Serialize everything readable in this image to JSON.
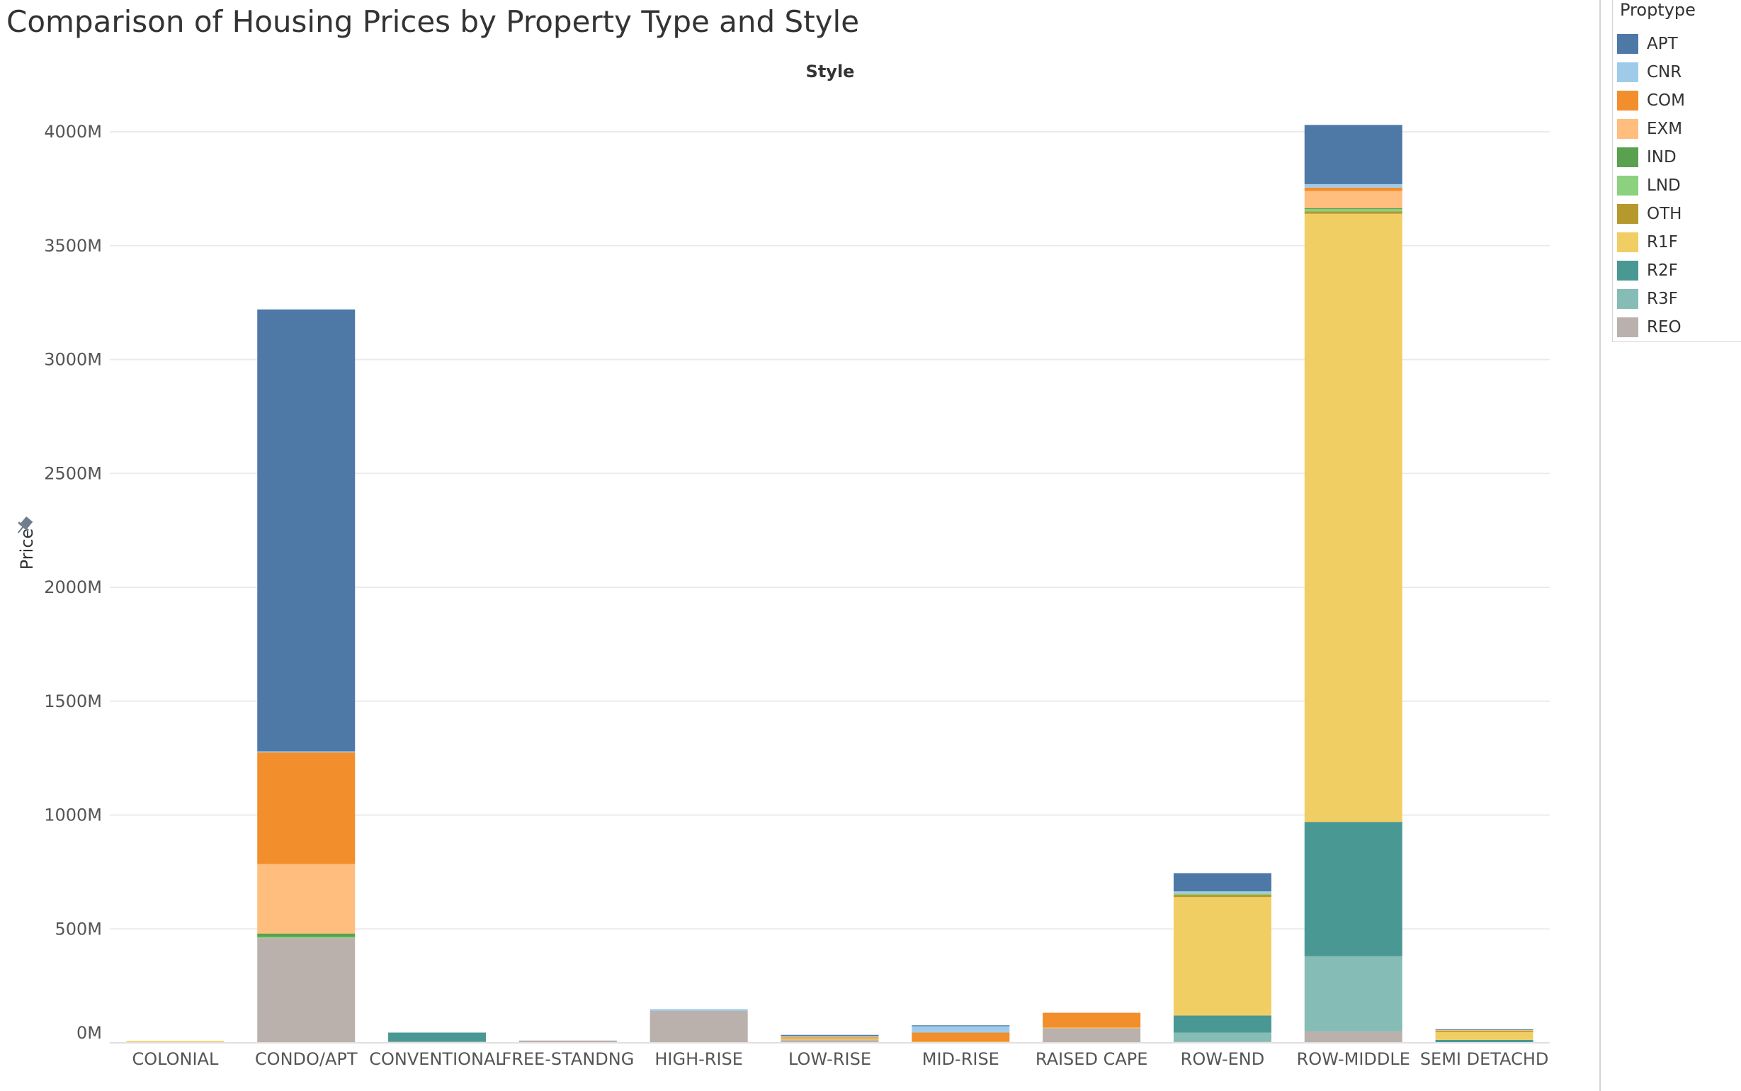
{
  "chart_data": {
    "type": "bar",
    "stacked": true,
    "title": "Comparison of Housing Prices by Property Type and Style",
    "column_header": "Style",
    "xlabel": "",
    "ylabel": "Price",
    "ylim": [
      0,
      4000
    ],
    "y_unit_suffix": "M",
    "y_ticks": [
      0,
      500,
      1000,
      1500,
      2000,
      2500,
      3000,
      3500,
      4000
    ],
    "y_tick_labels": [
      "0M",
      "500M",
      "1000M",
      "1500M",
      "2000M",
      "2500M",
      "3000M",
      "3500M",
      "4000M"
    ],
    "gridlines": true,
    "legend_position": "right",
    "legend_title": "Proptype",
    "categories": [
      "COLONIAL",
      "CONDO/APT",
      "CONVENTIONAL",
      "FREE-STANDNG",
      "HIGH-RISE",
      "LOW-RISE",
      "MID-RISE",
      "RAISED CAPE",
      "ROW-END",
      "ROW-MIDDLE",
      "SEMI DETACHD"
    ],
    "series": [
      {
        "name": "APT",
        "color": "#4e79a7",
        "values": [
          0,
          1940,
          0,
          0,
          0,
          5,
          4,
          0,
          80,
          260,
          3
        ]
      },
      {
        "name": "CNR",
        "color": "#a0cbe8",
        "values": [
          0,
          5,
          0,
          0,
          8,
          4,
          28,
          0,
          10,
          15,
          0
        ]
      },
      {
        "name": "COM",
        "color": "#f28e2b",
        "values": [
          0,
          490,
          0,
          0,
          0,
          3,
          40,
          65,
          0,
          15,
          0
        ]
      },
      {
        "name": "EXM",
        "color": "#ffbe7d",
        "values": [
          0,
          305,
          0,
          0,
          0,
          4,
          0,
          0,
          0,
          75,
          3
        ]
      },
      {
        "name": "IND",
        "color": "#59a14f",
        "values": [
          0,
          15,
          0,
          0,
          0,
          0,
          0,
          0,
          0,
          5,
          0
        ]
      },
      {
        "name": "LND",
        "color": "#8cd17d",
        "values": [
          0,
          5,
          0,
          0,
          0,
          0,
          0,
          0,
          5,
          10,
          0
        ]
      },
      {
        "name": "OTH",
        "color": "#b6992d",
        "values": [
          0,
          0,
          0,
          0,
          0,
          2,
          0,
          0,
          10,
          10,
          5
        ]
      },
      {
        "name": "R1F",
        "color": "#f1ce63",
        "values": [
          5,
          0,
          0,
          0,
          0,
          5,
          2,
          2,
          520,
          2670,
          35
        ]
      },
      {
        "name": "R2F",
        "color": "#499894",
        "values": [
          0,
          0,
          40,
          0,
          0,
          0,
          0,
          0,
          75,
          590,
          10
        ]
      },
      {
        "name": "R3F",
        "color": "#86bcb6",
        "values": [
          0,
          0,
          0,
          0,
          0,
          0,
          0,
          0,
          40,
          330,
          0
        ]
      },
      {
        "name": "REO",
        "color": "#bab0ac",
        "values": [
          3,
          460,
          5,
          10,
          140,
          12,
          3,
          65,
          5,
          50,
          3
        ]
      }
    ]
  }
}
